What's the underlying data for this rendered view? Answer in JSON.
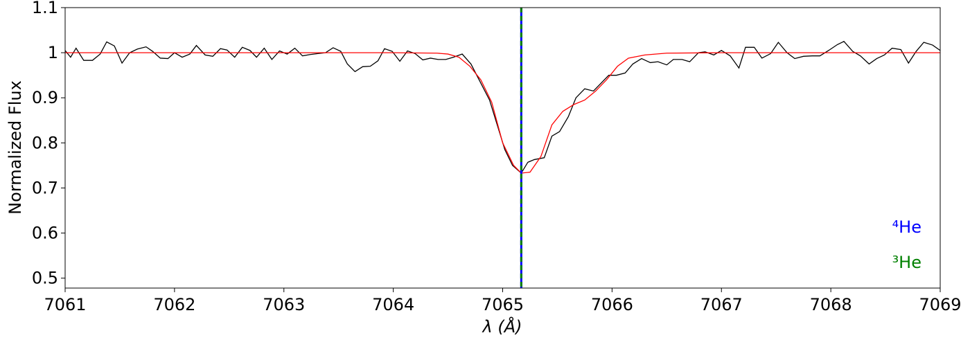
{
  "chart_data": {
    "type": "line",
    "xlabel": "λ (Å)",
    "ylabel": "Normalized Flux",
    "xlim": [
      7061,
      7069
    ],
    "ylim": [
      0.478,
      1.1
    ],
    "xticks": [
      7061,
      7062,
      7063,
      7064,
      7065,
      7066,
      7067,
      7068,
      7069
    ],
    "yticks": [
      0.5,
      0.6,
      0.7,
      0.8,
      0.9,
      1.0,
      1.1
    ],
    "series": [
      {
        "color": "#000000",
        "x": [
          7061.0,
          7061.05,
          7061.1,
          7061.17,
          7061.25,
          7061.32,
          7061.38,
          7061.45,
          7061.52,
          7061.59,
          7061.66,
          7061.74,
          7061.8,
          7061.87,
          7061.94,
          7062.0,
          7062.07,
          7062.14,
          7062.2,
          7062.28,
          7062.35,
          7062.42,
          7062.48,
          7062.55,
          7062.62,
          7062.69,
          7062.75,
          7062.82,
          7062.89,
          7062.96,
          7063.03,
          7063.1,
          7063.17,
          7063.24,
          7063.31,
          7063.38,
          7063.45,
          7063.52,
          7063.58,
          7063.65,
          7063.72,
          7063.79,
          7063.86,
          7063.92,
          7063.99,
          7064.06,
          7064.13,
          7064.2,
          7064.27,
          7064.34,
          7064.41,
          7064.48,
          7064.55,
          7064.63,
          7064.71,
          7064.88,
          7065.02,
          7065.09,
          7065.17,
          7065.23,
          7065.29,
          7065.38,
          7065.45,
          7065.52,
          7065.6,
          7065.67,
          7065.75,
          7065.83,
          7065.89,
          7065.97,
          7066.04,
          7066.12,
          7066.19,
          7066.27,
          7066.35,
          7066.42,
          7066.5,
          7066.56,
          7066.64,
          7066.71,
          7066.79,
          7066.85,
          7066.93,
          7067.0,
          7067.08,
          7067.16,
          7067.22,
          7067.3,
          7067.37,
          7067.45,
          7067.52,
          7067.6,
          7067.67,
          7067.75,
          7067.83,
          7067.9,
          7067.98,
          7068.06,
          7068.12,
          7068.2,
          7068.27,
          7068.35,
          7068.42,
          7068.49,
          7068.56,
          7068.64,
          7068.71,
          7068.78,
          7068.85,
          7068.93,
          7069.0
        ],
        "values": [
          1.005,
          0.99,
          1.01,
          0.983,
          0.983,
          0.997,
          1.024,
          1.015,
          0.977,
          1.0,
          1.008,
          1.013,
          1.003,
          0.988,
          0.987,
          1.0,
          0.99,
          0.997,
          1.016,
          0.995,
          0.992,
          1.009,
          1.006,
          0.99,
          1.012,
          1.005,
          0.99,
          1.01,
          0.985,
          1.004,
          0.997,
          1.01,
          0.993,
          0.996,
          0.998,
          1.0,
          1.011,
          1.003,
          0.975,
          0.958,
          0.969,
          0.97,
          0.982,
          1.009,
          1.003,
          0.981,
          1.004,
          0.998,
          0.984,
          0.988,
          0.985,
          0.985,
          0.99,
          0.997,
          0.975,
          0.895,
          0.785,
          0.75,
          0.733,
          0.757,
          0.763,
          0.767,
          0.815,
          0.825,
          0.858,
          0.9,
          0.92,
          0.915,
          0.93,
          0.95,
          0.95,
          0.955,
          0.975,
          0.987,
          0.978,
          0.98,
          0.973,
          0.985,
          0.985,
          0.98,
          1.0,
          1.002,
          0.995,
          1.005,
          0.993,
          0.966,
          1.012,
          1.012,
          0.988,
          0.998,
          1.023,
          1.0,
          0.987,
          0.992,
          0.993,
          0.993,
          1.005,
          1.018,
          1.025,
          1.003,
          0.993,
          0.975,
          0.987,
          0.995,
          1.01,
          1.007,
          0.977,
          1.003,
          1.023,
          1.017,
          1.005
        ]
      },
      {
        "color": "#ff0000",
        "x": [
          7061,
          7062,
          7063,
          7064,
          7064.4,
          7064.5,
          7064.6,
          7064.7,
          7064.8,
          7064.9,
          7065.0,
          7065.1,
          7065.17,
          7065.25,
          7065.35,
          7065.45,
          7065.55,
          7065.65,
          7065.75,
          7065.85,
          7065.95,
          7066.05,
          7066.15,
          7066.3,
          7066.5,
          7067,
          7068,
          7069
        ],
        "values": [
          1.0,
          1.0,
          1.0,
          1.0,
          0.999,
          0.997,
          0.99,
          0.97,
          0.94,
          0.89,
          0.8,
          0.75,
          0.733,
          0.735,
          0.77,
          0.84,
          0.87,
          0.885,
          0.895,
          0.915,
          0.94,
          0.97,
          0.988,
          0.995,
          0.999,
          1.0,
          1.0,
          1.0
        ]
      }
    ],
    "vlines": [
      {
        "x": 7065.17,
        "color": "#0000ff",
        "label": "⁴He"
      },
      {
        "x": 7065.17,
        "color": "#008000",
        "label": "³He"
      }
    ]
  }
}
